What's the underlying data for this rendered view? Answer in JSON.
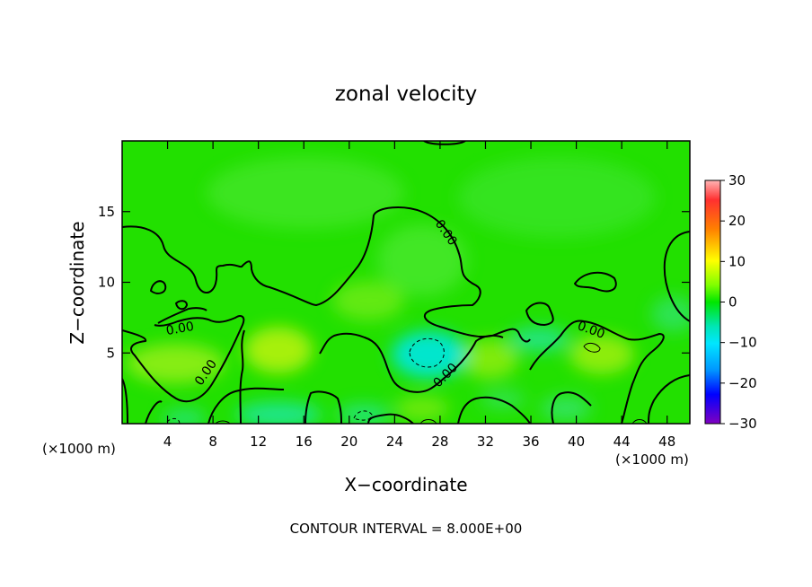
{
  "chart_data": {
    "type": "heatmap",
    "title": "zonal velocity",
    "xlabel": "X−coordinate",
    "ylabel": "Z−coordinate",
    "x_unit_left": "(×1000 m)",
    "x_unit_right": "(×1000 m)",
    "xlim": [
      0,
      50
    ],
    "ylim": [
      0,
      20
    ],
    "x_ticks": [
      4,
      8,
      12,
      16,
      20,
      24,
      28,
      32,
      36,
      40,
      44,
      48
    ],
    "y_ticks": [
      5,
      10,
      15
    ],
    "x_tick_labels": [
      "4",
      "8",
      "12",
      "16",
      "20",
      "24",
      "28",
      "32",
      "36",
      "40",
      "44",
      "48"
    ],
    "y_tick_labels": [
      "5",
      "10",
      "15"
    ],
    "colorbar": {
      "min": -30,
      "max": 30,
      "ticks": [
        30,
        20,
        10,
        0,
        -10,
        -20,
        -30
      ],
      "tick_labels": [
        "30",
        "20",
        "10",
        "0",
        "−10",
        "−20",
        "−30"
      ]
    },
    "contour_labels": [
      {
        "text": "0.00",
        "x": 28.5,
        "z": 13.5,
        "angle": 55
      },
      {
        "text": "0.00",
        "x": 5.1,
        "z": 6.7,
        "angle": -10
      },
      {
        "text": "0.00",
        "x": 7.4,
        "z": 3.6,
        "angle": -55
      },
      {
        "text": "0.00",
        "x": 28.5,
        "z": 3.4,
        "angle": -45
      },
      {
        "text": "0.00",
        "x": 41.3,
        "z": 6.6,
        "angle": 20
      }
    ],
    "footer": "CONTOUR INTERVAL = 8.000E+00"
  }
}
